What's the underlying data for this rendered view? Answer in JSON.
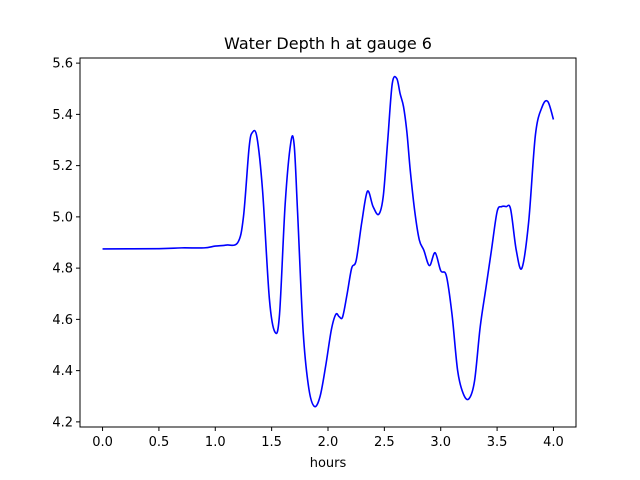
{
  "chart_data": {
    "type": "line",
    "title": "Water Depth h at gauge 6",
    "xlabel": "hours",
    "ylabel": "",
    "xlim": [
      -0.2,
      4.2
    ],
    "ylim": [
      4.18,
      5.62
    ],
    "xticks": [
      0.0,
      0.5,
      1.0,
      1.5,
      2.0,
      2.5,
      3.0,
      3.5,
      4.0
    ],
    "xtick_labels": [
      "0.0",
      "0.5",
      "1.0",
      "1.5",
      "2.0",
      "2.5",
      "3.0",
      "3.5",
      "4.0"
    ],
    "yticks": [
      4.2,
      4.4,
      4.6,
      4.8,
      5.0,
      5.2,
      5.4,
      5.6
    ],
    "ytick_labels": [
      "4.2",
      "4.4",
      "4.6",
      "4.8",
      "5.0",
      "5.2",
      "5.4",
      "5.6"
    ],
    "grid": false,
    "series": [
      {
        "color": "#0000ff",
        "x": [
          0.0,
          0.5,
          0.7,
          0.9,
          1.0,
          1.1,
          1.2,
          1.25,
          1.3,
          1.33,
          1.37,
          1.42,
          1.48,
          1.53,
          1.57,
          1.62,
          1.67,
          1.7,
          1.73,
          1.78,
          1.83,
          1.88,
          1.93,
          1.98,
          2.03,
          2.07,
          2.1,
          2.13,
          2.17,
          2.21,
          2.25,
          2.3,
          2.35,
          2.4,
          2.45,
          2.49,
          2.53,
          2.57,
          2.61,
          2.64,
          2.67,
          2.7,
          2.73,
          2.77,
          2.81,
          2.85,
          2.9,
          2.95,
          3.0,
          3.05,
          3.1,
          3.15,
          3.2,
          3.25,
          3.3,
          3.35,
          3.4,
          3.45,
          3.5,
          3.54,
          3.58,
          3.62,
          3.67,
          3.72,
          3.78,
          3.84,
          3.9,
          3.95,
          4.0
        ],
        "y": [
          4.875,
          4.876,
          4.879,
          4.879,
          4.886,
          4.89,
          4.9,
          5.0,
          5.27,
          5.33,
          5.31,
          5.1,
          4.68,
          4.55,
          4.62,
          5.05,
          5.29,
          5.28,
          5.02,
          4.55,
          4.33,
          4.26,
          4.3,
          4.42,
          4.56,
          4.62,
          4.61,
          4.61,
          4.7,
          4.8,
          4.83,
          4.98,
          5.1,
          5.04,
          5.01,
          5.08,
          5.3,
          5.52,
          5.54,
          5.48,
          5.43,
          5.33,
          5.18,
          5.02,
          4.91,
          4.87,
          4.81,
          4.86,
          4.79,
          4.77,
          4.62,
          4.4,
          4.31,
          4.29,
          4.36,
          4.57,
          4.72,
          4.87,
          5.02,
          5.04,
          5.04,
          5.03,
          4.87,
          4.8,
          4.98,
          5.32,
          5.43,
          5.45,
          5.38
        ]
      }
    ]
  }
}
